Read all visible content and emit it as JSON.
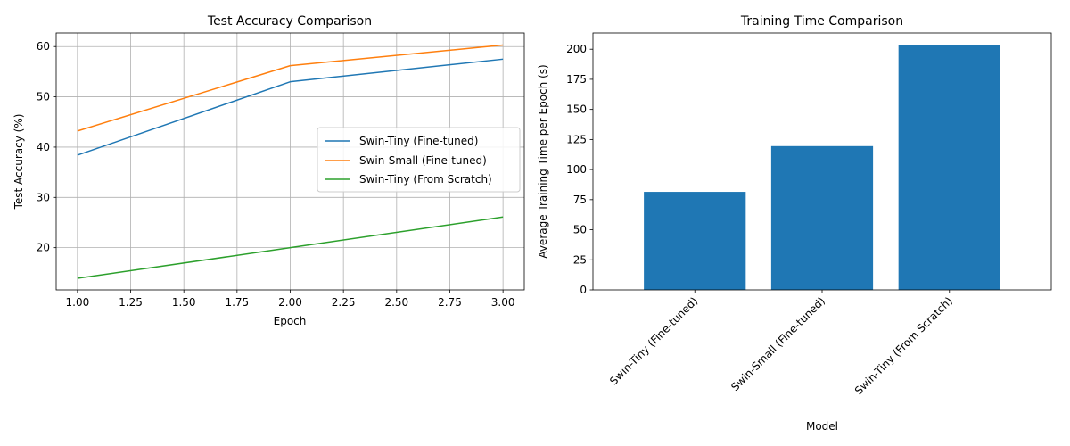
{
  "chart_data": [
    {
      "type": "line",
      "title": "Test Accuracy Comparison",
      "xlabel": "Epoch",
      "ylabel": "Test Accuracy (%)",
      "xlim": [
        0.9,
        3.1
      ],
      "ylim": [
        11.6,
        62.7
      ],
      "grid": true,
      "legend_placement": "center-right",
      "x": [
        1.0,
        2.0,
        3.0
      ],
      "x_ticks": [
        "1.00",
        "1.25",
        "1.50",
        "1.75",
        "2.00",
        "2.25",
        "2.50",
        "2.75",
        "3.00"
      ],
      "y_ticks": [
        "20",
        "30",
        "40",
        "50",
        "60"
      ],
      "series": [
        {
          "name": "Swin-Tiny (Fine-tuned)",
          "color": "#1f77b4",
          "values": [
            38.4,
            53.0,
            57.5
          ]
        },
        {
          "name": "Swin-Small (Fine-tuned)",
          "color": "#ff7f0e",
          "values": [
            43.2,
            56.2,
            60.3
          ]
        },
        {
          "name": "Swin-Tiny (From Scratch)",
          "color": "#2ca02c",
          "values": [
            13.9,
            20.0,
            26.1
          ]
        }
      ]
    },
    {
      "type": "bar",
      "title": "Training Time Comparison",
      "xlabel": "Model",
      "ylabel": "Average Training Time per Epoch (s)",
      "ylim": [
        0,
        213.5
      ],
      "grid": false,
      "bar_color": "#1f77b4",
      "y_ticks": [
        "0",
        "25",
        "50",
        "75",
        "100",
        "125",
        "150",
        "175",
        "200"
      ],
      "categories": [
        "Swin-Tiny (Fine-tuned)",
        "Swin-Small (Fine-tuned)",
        "Swin-Tiny (From Scratch)"
      ],
      "values": [
        81.5,
        119.5,
        203.5
      ]
    }
  ]
}
